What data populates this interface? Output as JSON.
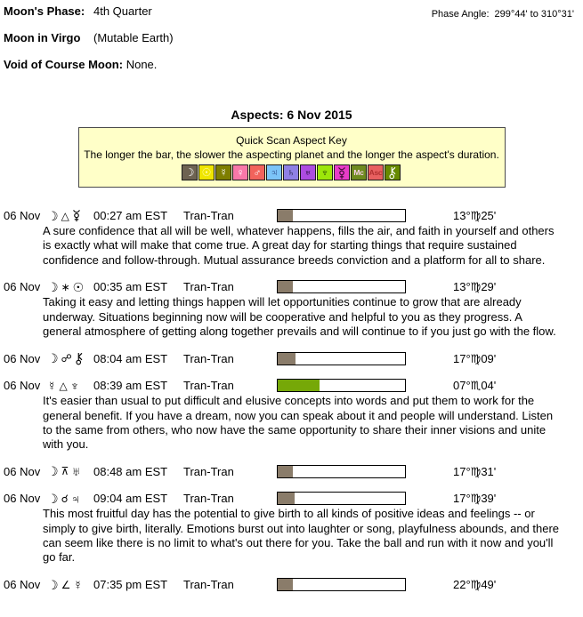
{
  "header": {
    "moons_phase_label": "Moon's Phase:",
    "moons_phase_value": "4th Quarter",
    "phase_angle_label": "Phase Angle:",
    "phase_angle_value": "299°44' to 310°31'",
    "moon_sign_label": "Moon in Virgo",
    "moon_sign_value": "(Mutable Earth)",
    "voc_label": "Void of Course Moon:",
    "voc_value": "None."
  },
  "title": "Aspects: 6 Nov 2015",
  "aspect_key": {
    "title": "Quick Scan Aspect Key",
    "subtitle": "The longer the bar, the slower the aspecting planet and the longer the aspect's duration.",
    "planets": [
      {
        "name": "moon",
        "glyph": "☽",
        "bg": "#6E6352",
        "fg": "#FFFFFF"
      },
      {
        "name": "sun",
        "glyph": "☉",
        "bg": "#EFE500",
        "fg": "#FFFFB0"
      },
      {
        "name": "mercury",
        "glyph": "☿",
        "bg": "#7E7E00",
        "fg": "#FFFFFF"
      },
      {
        "name": "venus",
        "glyph": "♀",
        "bg": "#F878A8",
        "fg": "#FFFFFF"
      },
      {
        "name": "mars",
        "glyph": "♂",
        "bg": "#F2635C",
        "fg": "#FFFFFF"
      },
      {
        "name": "jupiter",
        "glyph": "♃",
        "bg": "#7CC4F8",
        "fg": "#1A2E6E"
      },
      {
        "name": "saturn",
        "glyph": "♄",
        "bg": "#8F80E4",
        "fg": "#14142E"
      },
      {
        "name": "uranus",
        "glyph": "♅",
        "bg": "#AC4CE0",
        "fg": "#1E0A34"
      },
      {
        "name": "neptune",
        "glyph": "♆",
        "bg": "#9CE60A",
        "fg": "#1E3A00"
      },
      {
        "name": "pluto",
        "glyph": "⯓",
        "bg": "#E83CC8",
        "fg": "#3A0A32"
      },
      {
        "name": "mc",
        "glyph": "Mc",
        "bg": "#6E8A1E",
        "fg": "#F8D0E8"
      },
      {
        "name": "asc",
        "glyph": "Asc",
        "bg": "#E86060",
        "fg": "#B03030"
      },
      {
        "name": "chiron",
        "glyph": "⚷",
        "bg": "#678A00",
        "fg": "#FFFFFF"
      }
    ]
  },
  "aspects": [
    {
      "date": "06 Nov",
      "p1": "moon",
      "p1_glyph": "☽",
      "aspect": "trine",
      "aspect_glyph": "△",
      "p2": "pluto",
      "p2_glyph": "⯓",
      "time": "00:27 am EST",
      "type": "Tran-Tran",
      "bar_pct": 12,
      "bar_color": "#8A7C6A",
      "position": "13°♍25'",
      "text": "A sure confidence that all will be well, whatever happens, fills the air, and faith in yourself and others is exactly what will make that come true. A great day for starting things that require sustained confidence and follow-through. Mutual assurance breeds conviction and a platform for all to share."
    },
    {
      "date": "06 Nov",
      "p1": "moon",
      "p1_glyph": "☽",
      "aspect": "sextile",
      "aspect_glyph": "⚹",
      "p2": "sun",
      "p2_glyph": "☉",
      "time": "00:35 am EST",
      "type": "Tran-Tran",
      "bar_pct": 12,
      "bar_color": "#8A7C6A",
      "position": "13°♍29'",
      "text": "Taking it easy and letting things happen will let opportunities continue to grow that are already underway. Situations beginning now will be cooperative and helpful to you as they progress. A general atmosphere of getting along together prevails and will continue to if you just go with the flow."
    },
    {
      "date": "06 Nov",
      "p1": "moon",
      "p1_glyph": "☽",
      "aspect": "opposition",
      "aspect_glyph": "☍",
      "p2": "chiron",
      "p2_glyph": "⚷",
      "time": "08:04 am EST",
      "type": "Tran-Tran",
      "bar_pct": 14,
      "bar_color": "#8A7C6A",
      "position": "17°♍09'",
      "text": ""
    },
    {
      "date": "06 Nov",
      "p1": "mercury",
      "p1_glyph": "☿",
      "aspect": "trine",
      "aspect_glyph": "△",
      "p2": "neptune",
      "p2_glyph": "♆",
      "time": "08:39 am EST",
      "type": "Tran-Tran",
      "bar_pct": 33,
      "bar_color": "#76A808",
      "position": "07°♏04'",
      "text": "It's easier than usual to put difficult and elusive concepts into words and put them to work for the general benefit. If you have a dream, now you can speak about it and people will understand. Listen to the same from others, who now have the same opportunity to share their inner visions and unite with you."
    },
    {
      "date": "06 Nov",
      "p1": "moon",
      "p1_glyph": "☽",
      "aspect": "quincunx",
      "aspect_glyph": "⚻",
      "p2": "uranus",
      "p2_glyph": "♅",
      "time": "08:48 am EST",
      "type": "Tran-Tran",
      "bar_pct": 12,
      "bar_color": "#8A7C6A",
      "position": "17°♍31'",
      "text": ""
    },
    {
      "date": "06 Nov",
      "p1": "moon",
      "p1_glyph": "☽",
      "aspect": "conjunction",
      "aspect_glyph": "☌",
      "p2": "jupiter",
      "p2_glyph": "♃",
      "time": "09:04 am EST",
      "type": "Tran-Tran",
      "bar_pct": 13,
      "bar_color": "#8A7C6A",
      "position": "17°♍39'",
      "text": "This most fruitful day has the potential to give birth to all kinds of positive ideas and feelings -- or simply to give birth, literally. Emotions burst out into laughter or song, playfulness abounds, and there can seem like there is no limit to what's out there for you. Take the ball and run with it now and you'll go far."
    },
    {
      "date": "06 Nov",
      "p1": "moon",
      "p1_glyph": "☽",
      "aspect": "semisquare",
      "aspect_glyph": "∠",
      "p2": "mercury",
      "p2_glyph": "☿",
      "time": "07:35 pm EST",
      "type": "Tran-Tran",
      "bar_pct": 12,
      "bar_color": "#8A7C6A",
      "position": "22°♍49'",
      "text": ""
    }
  ]
}
